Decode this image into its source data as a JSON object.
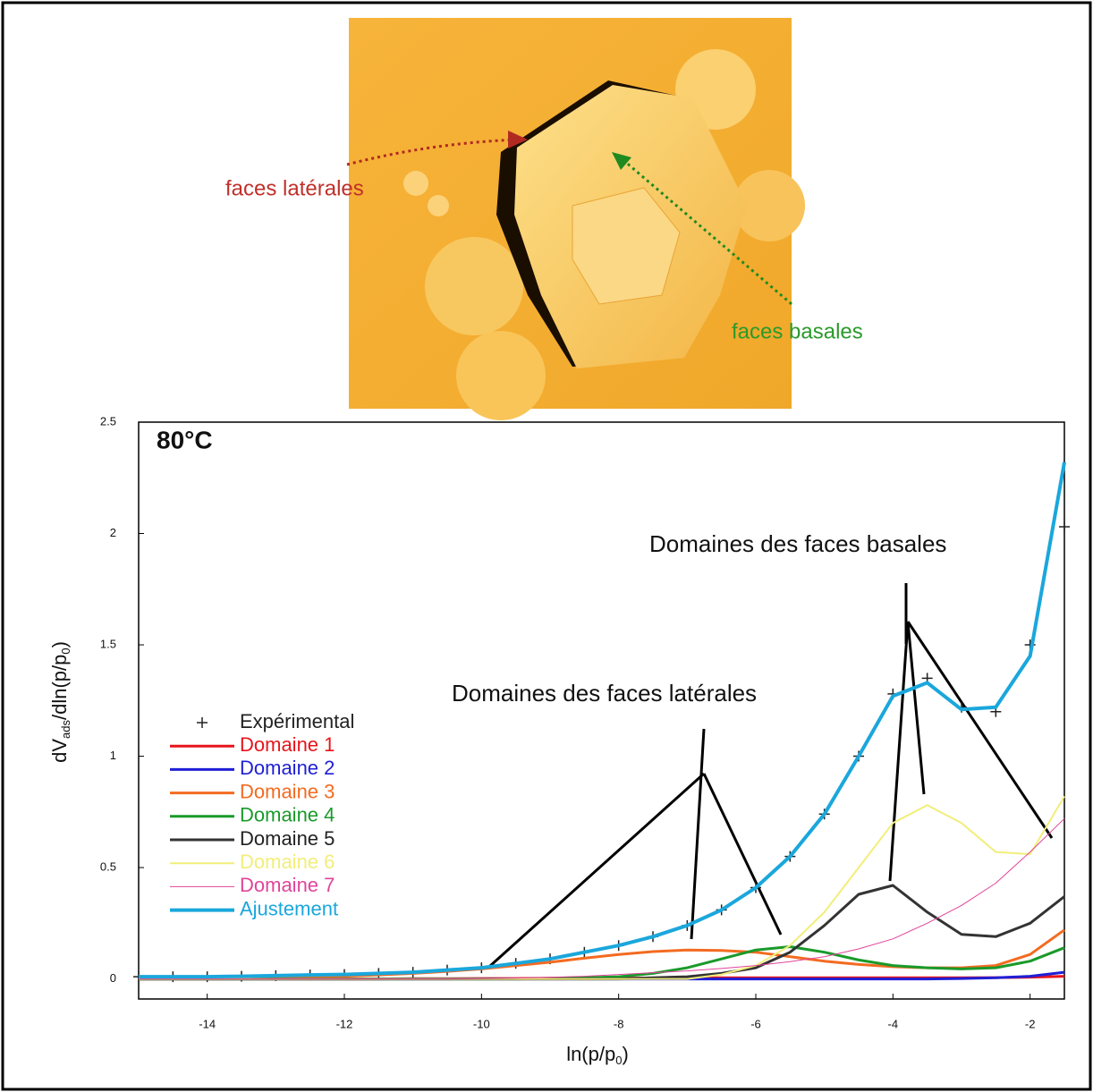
{
  "chart_data": {
    "type": "line",
    "ylabel_parts": [
      "dV",
      "ads",
      "/dln(p/p",
      "0",
      ")"
    ],
    "xlabel_parts": [
      "ln(p/p",
      "0",
      ")"
    ],
    "annotations": [
      "80°C",
      "Domaines des faces basales",
      "Domaines des faces latérales",
      "faces latérales",
      "faces basales"
    ],
    "xlim": [
      -15,
      -1.5
    ],
    "ylim": [
      -0.09,
      2.5
    ],
    "xticks": [
      -14,
      -12,
      -10,
      -8,
      -6,
      -4,
      -2
    ],
    "yticks": [
      0,
      0.5,
      1,
      1.5,
      2,
      2.5
    ],
    "x": [
      -15,
      -14.5,
      -14,
      -13.5,
      -13,
      -12.5,
      -12,
      -11.5,
      -11,
      -10.5,
      -10,
      -9.5,
      -9,
      -8.5,
      -8,
      -7.5,
      -7,
      -6.5,
      -6,
      -5.5,
      -5,
      -4.5,
      -4,
      -3.5,
      -3,
      -2.5,
      -2,
      -1.5
    ],
    "series": [
      {
        "name": "Expérimental",
        "color": "#222222",
        "values": [
          0.01,
          0.01,
          0.01,
          0.012,
          0.015,
          0.018,
          0.02,
          0.025,
          0.03,
          0.04,
          0.05,
          0.07,
          0.09,
          0.12,
          0.15,
          0.19,
          0.24,
          0.31,
          0.41,
          0.55,
          0.74,
          1.0,
          1.28,
          1.35,
          1.22,
          1.2,
          1.5,
          2.03
        ]
      },
      {
        "name": "Domaine 1",
        "color": "#e8141c",
        "values": [
          0,
          0,
          0,
          0,
          0,
          0,
          0,
          0,
          0.001,
          0.001,
          0.002,
          0.002,
          0.003,
          0.003,
          0.004,
          0.004,
          0.005,
          0.005,
          0.005,
          0.005,
          0.005,
          0.005,
          0.005,
          0.005,
          0.005,
          0.006,
          0.008,
          0.012
        ]
      },
      {
        "name": "Domaine 2",
        "color": "#1f1fd6",
        "values": [
          0,
          0,
          0,
          0,
          0,
          0,
          0,
          0,
          0,
          0,
          0,
          0,
          0,
          0,
          0,
          0,
          0,
          0,
          0,
          0,
          0,
          0,
          0,
          0,
          0.002,
          0.005,
          0.012,
          0.03
        ]
      },
      {
        "name": "Domaine 3",
        "color": "#f36b21",
        "values": [
          0,
          0.001,
          0.002,
          0.003,
          0.005,
          0.008,
          0.012,
          0.018,
          0.025,
          0.034,
          0.045,
          0.06,
          0.075,
          0.093,
          0.11,
          0.123,
          0.13,
          0.128,
          0.12,
          0.1,
          0.08,
          0.065,
          0.055,
          0.05,
          0.05,
          0.06,
          0.11,
          0.22
        ]
      },
      {
        "name": "Domaine 4",
        "color": "#1a9a2a",
        "values": [
          0,
          0,
          0,
          0,
          0,
          0,
          0,
          0,
          0,
          0,
          0,
          0,
          0.002,
          0.005,
          0.01,
          0.025,
          0.05,
          0.09,
          0.13,
          0.145,
          0.12,
          0.085,
          0.06,
          0.05,
          0.045,
          0.05,
          0.08,
          0.14
        ]
      },
      {
        "name": "Domaine 5",
        "color": "#333333",
        "values": [
          0,
          0,
          0,
          0,
          0,
          0,
          0,
          0,
          0,
          0,
          0,
          0,
          0,
          0,
          0,
          0.005,
          0.01,
          0.025,
          0.05,
          0.12,
          0.24,
          0.38,
          0.42,
          0.3,
          0.2,
          0.19,
          0.25,
          0.37
        ]
      },
      {
        "name": "Domaine 6",
        "color": "#f2ee7a",
        "values": [
          0,
          0,
          0,
          0,
          0,
          0,
          0,
          0,
          0,
          0,
          0,
          0,
          0,
          0,
          0,
          0,
          0,
          0.02,
          0.06,
          0.15,
          0.3,
          0.5,
          0.7,
          0.78,
          0.7,
          0.57,
          0.56,
          0.82
        ]
      },
      {
        "name": "Domaine 7",
        "color": "#e0449a",
        "values": [
          0,
          0,
          0,
          0,
          0,
          0,
          0,
          0,
          0,
          0,
          0.002,
          0.004,
          0.007,
          0.012,
          0.02,
          0.028,
          0.036,
          0.047,
          0.06,
          0.078,
          0.1,
          0.135,
          0.18,
          0.25,
          0.33,
          0.43,
          0.57,
          0.72
        ]
      },
      {
        "name": "Ajustement",
        "color": "#1aa7dc",
        "values": [
          0.01,
          0.01,
          0.01,
          0.012,
          0.015,
          0.018,
          0.02,
          0.025,
          0.03,
          0.04,
          0.05,
          0.07,
          0.09,
          0.12,
          0.15,
          0.19,
          0.24,
          0.31,
          0.41,
          0.55,
          0.74,
          1.0,
          1.27,
          1.33,
          1.21,
          1.22,
          1.45,
          2.32
        ]
      }
    ]
  }
}
